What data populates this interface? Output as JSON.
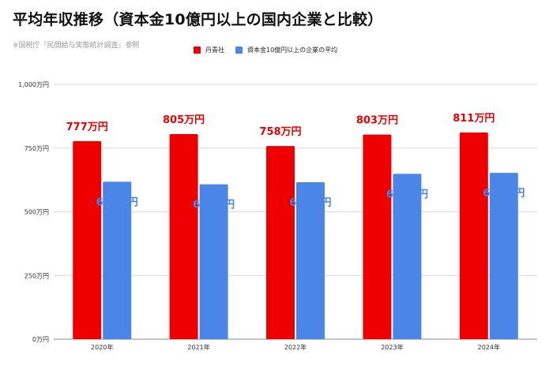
{
  "header": {
    "title": "平均年収推移（資本金10億円以上の国内企業と比較）",
    "source": "※国税庁『民間給与実態統計調査』参照"
  },
  "chart_data": {
    "type": "bar",
    "categories": [
      "2020年",
      "2021年",
      "2022年",
      "2023年",
      "2024年"
    ],
    "series": [
      {
        "name": "丹青社",
        "color": "#ee0000",
        "values": [
          777,
          805,
          758,
          803,
          811
        ],
        "labels": [
          "777万円",
          "805万円",
          "758万円",
          "803万円",
          "811万円"
        ],
        "label_color": "#ee0000"
      },
      {
        "name": "資本金10億円以上の企業の平均",
        "color": "#4a86e8",
        "values": [
          618,
          608,
          616,
          649,
          653
        ],
        "labels": [
          "618万円",
          "608万円",
          "616万円",
          "649万円",
          "653万円"
        ],
        "label_color": "#4a86e8"
      }
    ],
    "yticks": [
      "0万円",
      "250万円",
      "500万円",
      "750万円",
      "1,000万円"
    ],
    "ylim": [
      0,
      1000
    ],
    "grid": true,
    "legend_position": "top"
  }
}
